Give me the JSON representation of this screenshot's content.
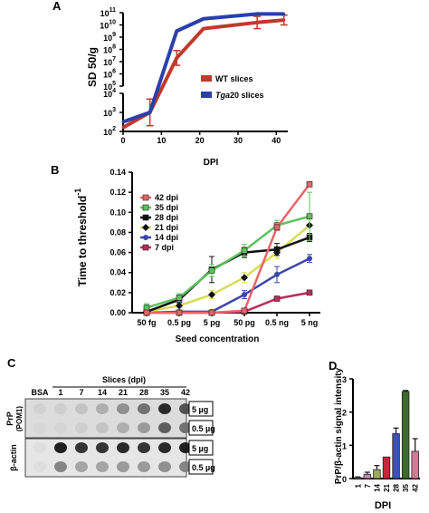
{
  "panels": {
    "a": "A",
    "b": "B",
    "c": "C",
    "d": "D"
  },
  "chart_data": [
    {
      "panel": "A",
      "type": "line",
      "xlabel": "DPI",
      "ylabel": "SD 50/g",
      "x_ticks": [
        0,
        10,
        20,
        30,
        40
      ],
      "xlim": [
        0,
        43
      ],
      "y_scale": "log",
      "y_axis_break": true,
      "upper_ylim_exp": [
        5,
        11
      ],
      "lower_ylim_exp": [
        2,
        4
      ],
      "y_tick_labels": [
        "10^11",
        "10^10",
        "10^9",
        "10^8",
        "10^7",
        "10^6",
        "10^5",
        "10^4",
        "10^3",
        "10^2"
      ],
      "legend": {
        "position": "bottom-right",
        "entries": [
          {
            "prefix": "",
            "italic": "",
            "suffix": "WT slices",
            "color": "#c0392b"
          },
          {
            "prefix": "",
            "italic": "Tga",
            "suffix": "20 slices",
            "color": "#2b3faa"
          }
        ]
      },
      "series": [
        {
          "name": "WT slices",
          "color": "#c0392b",
          "x": [
            0,
            7,
            14,
            21,
            35,
            42
          ],
          "log10_y": [
            2.2,
            3.0,
            7.3,
            9.7,
            10.2,
            10.4
          ],
          "err_log10": [
            0,
            0.7,
            0.6,
            0,
            0.5,
            0.4
          ]
        },
        {
          "name": "Tga20 slices",
          "color": "#2b3faa",
          "x": [
            0,
            7,
            14,
            21,
            35,
            42
          ],
          "log10_y": [
            2.5,
            3.0,
            9.5,
            10.5,
            10.9,
            10.9
          ],
          "err_log10": [
            0,
            0,
            0,
            0,
            0,
            0
          ]
        }
      ]
    },
    {
      "panel": "B",
      "type": "line",
      "xlabel": "Seed concentration",
      "ylabel": "Time to threshold",
      "ylabel_sup": "-1",
      "categories": [
        "50 fg",
        "0.5 pg",
        "5 pg",
        "50 pg",
        "0.5 ng",
        "5 ng"
      ],
      "ylim": [
        0,
        0.14
      ],
      "y_ticks": [
        0.0,
        0.02,
        0.04,
        0.06,
        0.08,
        0.1,
        0.12,
        0.14
      ],
      "legend_position": "top-left",
      "series": [
        {
          "name": "42 dpi",
          "color": "#e8646a",
          "marker": "square",
          "values": [
            0.0,
            0.0,
            0.0,
            0.002,
            0.085,
            0.128
          ],
          "err": [
            0,
            0,
            0,
            0,
            0.003,
            0.002
          ]
        },
        {
          "name": "35 dpi",
          "color": "#5cc25c",
          "marker": "square",
          "values": [
            0.005,
            0.015,
            0.042,
            0.062,
            0.087,
            0.096
          ],
          "err": [
            0.004,
            0.004,
            0.006,
            0.006,
            0.005,
            0.024
          ]
        },
        {
          "name": "28 dpi",
          "color": "#111111",
          "marker": "square",
          "values": [
            0.001,
            0.013,
            0.043,
            0.06,
            0.063,
            0.075
          ],
          "err": [
            0.002,
            0.003,
            0.013,
            0.005,
            0.006,
            0.004
          ]
        },
        {
          "name": "21 dpi",
          "color": "#d8dc54",
          "marker": "diamond",
          "values": [
            0.001,
            0.007,
            0.018,
            0.035,
            0.06,
            0.087
          ],
          "err": [
            0.002,
            0.002,
            0.004,
            0.005,
            0.006,
            0.009
          ]
        },
        {
          "name": "14 dpi",
          "color": "#3b47a8",
          "marker": "circle",
          "values": [
            0.0,
            0.001,
            0.001,
            0.018,
            0.038,
            0.054
          ],
          "err": [
            0,
            0,
            0,
            0.004,
            0.008,
            0.004
          ]
        },
        {
          "name": "7 dpi",
          "color": "#b82d59",
          "marker": "square",
          "values": [
            0.0,
            0.0,
            0.0,
            0.001,
            0.014,
            0.02
          ],
          "err": [
            0,
            0,
            0,
            0,
            0.001,
            0.001
          ]
        }
      ]
    },
    {
      "panel": "C",
      "type": "table",
      "header_title": "Slices (dpi)",
      "columns": [
        "BSA",
        "1",
        "7",
        "14",
        "21",
        "28",
        "35",
        "42"
      ],
      "row_groups": [
        {
          "label": "PrP",
          "label_sub": "(POM1)",
          "rows": [
            {
              "amount": "5 µg",
              "intensity": [
                0.08,
                0.1,
                0.15,
                0.25,
                0.4,
                0.55,
                0.9,
                0.7
              ]
            },
            {
              "amount": "0.5 µg",
              "intensity": [
                0.05,
                0.06,
                0.1,
                0.15,
                0.25,
                0.35,
                0.65,
                0.55
              ]
            }
          ]
        },
        {
          "label": "β-actin",
          "label_sub": "",
          "rows": [
            {
              "amount": "5 µg",
              "intensity": [
                0.02,
                0.95,
                0.85,
                0.85,
                0.9,
                0.85,
                0.9,
                0.95
              ]
            },
            {
              "amount": "0.5 µg",
              "intensity": [
                0.02,
                0.45,
                0.3,
                0.3,
                0.35,
                0.35,
                0.4,
                0.45
              ]
            }
          ]
        }
      ]
    },
    {
      "panel": "D",
      "type": "bar",
      "xlabel": "DPI",
      "ylabel": "PrP/β-actin signal intensity",
      "categories": [
        "1",
        "7",
        "14",
        "21",
        "28",
        "35",
        "42"
      ],
      "values": [
        0.03,
        0.13,
        0.27,
        0.65,
        1.35,
        2.62,
        0.82
      ],
      "err": [
        0.02,
        0.06,
        0.12,
        0,
        0.17,
        0.03,
        0.38
      ],
      "colors": [
        "#e9e9e9",
        "#c08ab6",
        "#9ca860",
        "#c8253a",
        "#3e51b8",
        "#3e6b2a",
        "#d27a96"
      ],
      "ylim": [
        0,
        3
      ],
      "y_ticks": [
        0,
        1,
        2,
        3
      ]
    }
  ]
}
